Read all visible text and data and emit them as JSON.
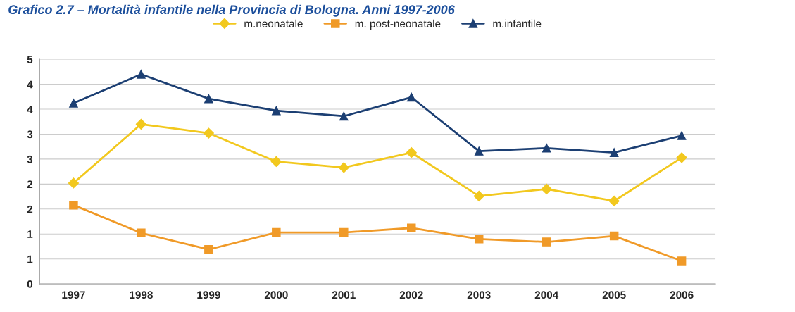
{
  "chart_data": {
    "type": "line",
    "title": "Grafico 2.7 – Mortalità infantile nella Provincia di Bologna. Anni 1997-2006",
    "categories": [
      "1997",
      "1998",
      "1999",
      "2000",
      "2001",
      "2002",
      "2003",
      "2004",
      "2005",
      "2006"
    ],
    "series": [
      {
        "name": "m.neonatale",
        "color": "#f2c81e",
        "marker": "diamond",
        "values": [
          2.02,
          3.2,
          3.02,
          2.45,
          2.33,
          2.63,
          1.76,
          1.9,
          1.66,
          2.53
        ]
      },
      {
        "name": "m. post-neonatale",
        "color": "#f09a28",
        "marker": "square",
        "values": [
          1.58,
          1.02,
          0.69,
          1.03,
          1.03,
          1.12,
          0.9,
          0.84,
          0.96,
          0.46
        ]
      },
      {
        "name": "m.infantile",
        "color": "#1c3f73",
        "marker": "triangle",
        "values": [
          3.62,
          4.2,
          3.71,
          3.47,
          3.36,
          3.74,
          2.66,
          2.72,
          2.63,
          2.97
        ]
      }
    ],
    "ylim": [
      0,
      4.5
    ],
    "yticks": [
      0,
      {
        "value": 0.5,
        "label": "1"
      },
      1,
      {
        "value": 1.5,
        "label": "2"
      },
      2,
      {
        "value": 2.5,
        "label": "3"
      },
      3,
      {
        "value": 3.5,
        "label": "4"
      },
      4,
      {
        "value": 4.5,
        "label": "5"
      }
    ],
    "grid": "y",
    "legend": "top",
    "line_style": "solid"
  }
}
